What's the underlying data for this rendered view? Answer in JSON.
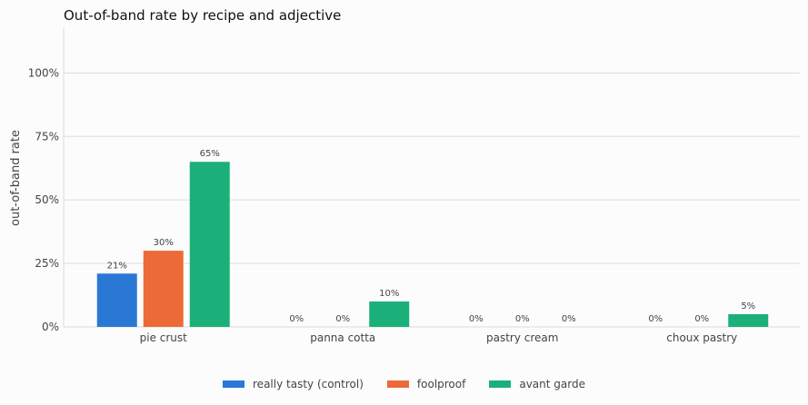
{
  "chart_data": {
    "type": "bar",
    "title": "Out-of-band rate by recipe and adjective",
    "ylabel": "out-of-band rate",
    "xlabel": "",
    "categories": [
      "pie crust",
      "panna cotta",
      "pastry cream",
      "choux pastry"
    ],
    "ylim": [
      0,
      1.18
    ],
    "yticks": [
      0,
      0.25,
      0.5,
      0.75,
      1.0
    ],
    "ytick_labels": [
      "0%",
      "25%",
      "50%",
      "75%",
      "100%"
    ],
    "grid": true,
    "legend_position": "bottom",
    "series": [
      {
        "name": "really tasty (control)",
        "color": "#2a78d6",
        "values": [
          0.21,
          0,
          0,
          0
        ],
        "labels": [
          "21%",
          "0%",
          "0%",
          "0%"
        ]
      },
      {
        "name": "foolproof",
        "color": "#ec6a37",
        "values": [
          0.3,
          0,
          0,
          0
        ],
        "labels": [
          "30%",
          "0%",
          "0%",
          "0%"
        ]
      },
      {
        "name": "avant garde",
        "color": "#1bb07a",
        "values": [
          0.65,
          0.1,
          0,
          0.05
        ],
        "labels": [
          "65%",
          "10%",
          "0%",
          "5%"
        ]
      }
    ]
  }
}
